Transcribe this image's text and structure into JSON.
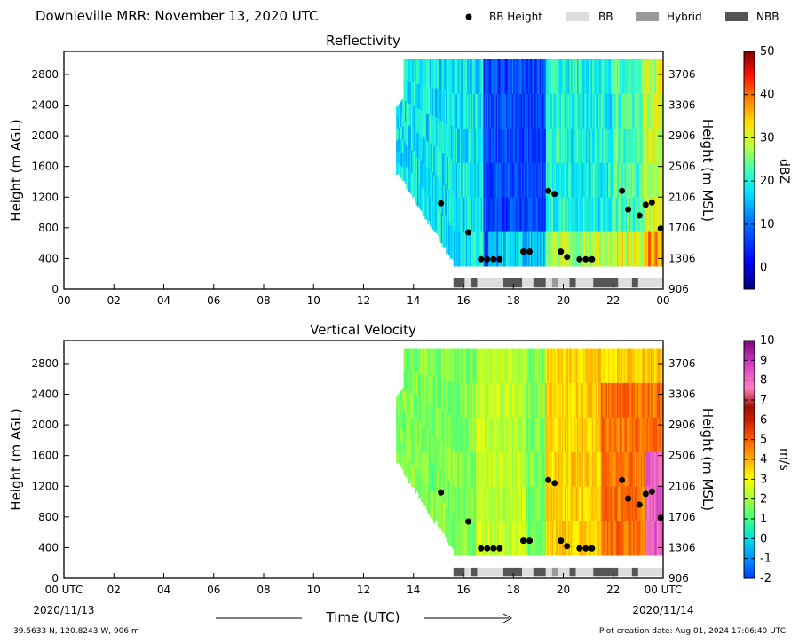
{
  "header": {
    "title": "Downieville MRR:  November 13, 2020 UTC",
    "legend": [
      {
        "label": "BB Height",
        "kind": "dot",
        "color": "#000000"
      },
      {
        "label": "BB",
        "kind": "box",
        "color": "#dddddd"
      },
      {
        "label": "Hybrid",
        "kind": "box",
        "color": "#999999"
      },
      {
        "label": "NBB",
        "kind": "box",
        "color": "#555555"
      }
    ]
  },
  "footer": {
    "location": "39.5633 N, 120.8243 W, 906 m",
    "created": "Plot creation date: Aug 01, 2024 17:06:40 UTC",
    "xlabel": "Time (UTC)",
    "date_left": "2020/11/13",
    "date_right": "2020/11/14"
  },
  "chart_data": [
    {
      "type": "heatmap",
      "title": "Reflectivity",
      "ylabel": "Height (m AGL)",
      "ylabel_right": "Height (m MSL)",
      "xlim": [
        0,
        24
      ],
      "ylim": [
        0,
        3100
      ],
      "x_ticks": [
        "00",
        "02",
        "04",
        "06",
        "08",
        "10",
        "12",
        "14",
        "16",
        "18",
        "20",
        "22",
        "00"
      ],
      "y_ticks": [
        0,
        400,
        800,
        1200,
        1600,
        2000,
        2400,
        2800
      ],
      "y_ticks_right": [
        906,
        1306,
        1706,
        2106,
        2506,
        2906,
        3306,
        3706
      ],
      "colorbar": {
        "label": "dBZ",
        "min": -5,
        "max": 50,
        "ticks": [
          0,
          10,
          20,
          30,
          40,
          50
        ]
      },
      "bb_height": [
        [
          15.1,
          1120
        ],
        [
          16.2,
          740
        ],
        [
          16.7,
          390
        ],
        [
          16.95,
          390
        ],
        [
          17.2,
          390
        ],
        [
          17.45,
          390
        ],
        [
          18.4,
          490
        ],
        [
          18.65,
          490
        ],
        [
          19.4,
          1280
        ],
        [
          19.65,
          1240
        ],
        [
          19.9,
          490
        ],
        [
          20.15,
          420
        ],
        [
          20.65,
          390
        ],
        [
          20.9,
          390
        ],
        [
          21.15,
          390
        ],
        [
          22.35,
          1280
        ],
        [
          22.6,
          1040
        ],
        [
          23.05,
          960
        ],
        [
          23.3,
          1100
        ],
        [
          23.55,
          1130
        ],
        [
          23.9,
          790
        ]
      ],
      "bb_type": [
        {
          "start": 15.6,
          "end": 16.05,
          "type": "NBB"
        },
        {
          "start": 16.05,
          "end": 16.3,
          "type": "BB"
        },
        {
          "start": 16.3,
          "end": 16.55,
          "type": "NBB"
        },
        {
          "start": 16.55,
          "end": 17.6,
          "type": "BB"
        },
        {
          "start": 17.6,
          "end": 18.35,
          "type": "NBB"
        },
        {
          "start": 18.35,
          "end": 18.8,
          "type": "BB"
        },
        {
          "start": 18.8,
          "end": 19.3,
          "type": "NBB"
        },
        {
          "start": 19.3,
          "end": 19.55,
          "type": "BB"
        },
        {
          "start": 19.55,
          "end": 19.8,
          "type": "Hybrid"
        },
        {
          "start": 19.8,
          "end": 20.25,
          "type": "BB"
        },
        {
          "start": 20.25,
          "end": 20.5,
          "type": "NBB"
        },
        {
          "start": 20.5,
          "end": 21.2,
          "type": "BB"
        },
        {
          "start": 21.2,
          "end": 22.2,
          "type": "NBB"
        },
        {
          "start": 22.2,
          "end": 22.75,
          "type": "BB"
        },
        {
          "start": 22.75,
          "end": 23.0,
          "type": "NBB"
        },
        {
          "start": 23.0,
          "end": 24.0,
          "type": "BB"
        }
      ]
    },
    {
      "type": "heatmap",
      "title": "Vertical Velocity",
      "ylabel": "Height (m AGL)",
      "ylabel_right": "Height (m MSL)",
      "xlim": [
        0,
        24
      ],
      "ylim": [
        0,
        3100
      ],
      "x_ticks": [
        "00 UTC",
        "02",
        "04",
        "06",
        "08",
        "10",
        "12",
        "14",
        "16",
        "18",
        "20",
        "22",
        "00 UTC"
      ],
      "y_ticks": [
        0,
        400,
        800,
        1200,
        1600,
        2000,
        2400,
        2800
      ],
      "y_ticks_right": [
        906,
        1306,
        1706,
        2106,
        2506,
        2906,
        3306,
        3706
      ],
      "colorbar": {
        "label": "m/s",
        "min": -2,
        "max": 10,
        "ticks": [
          -2,
          -1,
          0,
          1,
          2,
          3,
          4,
          5,
          6,
          7,
          8,
          9,
          10
        ]
      },
      "bb_height": [
        [
          15.1,
          1120
        ],
        [
          16.2,
          740
        ],
        [
          16.7,
          390
        ],
        [
          16.95,
          390
        ],
        [
          17.2,
          390
        ],
        [
          17.45,
          390
        ],
        [
          18.4,
          490
        ],
        [
          18.65,
          490
        ],
        [
          19.4,
          1280
        ],
        [
          19.65,
          1240
        ],
        [
          19.9,
          490
        ],
        [
          20.15,
          420
        ],
        [
          20.65,
          390
        ],
        [
          20.9,
          390
        ],
        [
          21.15,
          390
        ],
        [
          22.35,
          1280
        ],
        [
          22.6,
          1040
        ],
        [
          23.05,
          960
        ],
        [
          23.3,
          1100
        ],
        [
          23.55,
          1130
        ],
        [
          23.9,
          790
        ]
      ],
      "bb_type": [
        {
          "start": 15.6,
          "end": 16.05,
          "type": "NBB"
        },
        {
          "start": 16.05,
          "end": 16.3,
          "type": "BB"
        },
        {
          "start": 16.3,
          "end": 16.55,
          "type": "NBB"
        },
        {
          "start": 16.55,
          "end": 17.6,
          "type": "BB"
        },
        {
          "start": 17.6,
          "end": 18.35,
          "type": "NBB"
        },
        {
          "start": 18.35,
          "end": 18.8,
          "type": "BB"
        },
        {
          "start": 18.8,
          "end": 19.3,
          "type": "NBB"
        },
        {
          "start": 19.3,
          "end": 19.55,
          "type": "BB"
        },
        {
          "start": 19.55,
          "end": 19.8,
          "type": "Hybrid"
        },
        {
          "start": 19.8,
          "end": 20.25,
          "type": "BB"
        },
        {
          "start": 20.25,
          "end": 20.5,
          "type": "NBB"
        },
        {
          "start": 20.5,
          "end": 21.2,
          "type": "BB"
        },
        {
          "start": 21.2,
          "end": 22.2,
          "type": "NBB"
        },
        {
          "start": 22.2,
          "end": 22.75,
          "type": "BB"
        },
        {
          "start": 22.75,
          "end": 23.0,
          "type": "NBB"
        },
        {
          "start": 23.0,
          "end": 24.0,
          "type": "BB"
        }
      ]
    }
  ]
}
